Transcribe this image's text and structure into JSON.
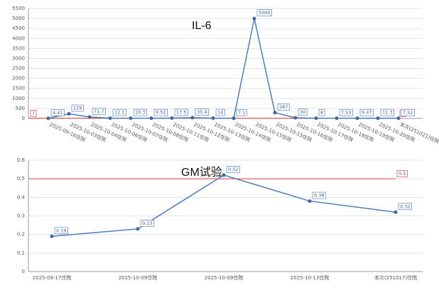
{
  "chart_data": [
    {
      "type": "line",
      "title": "IL-6",
      "categories": [
        "2025-09-16住院",
        "2025-10-03住院",
        "2025-10-04住院",
        "2025-10-06住院",
        "2025-10-07住院",
        "2025-10-08住院",
        "2025-10-11住院",
        "2025-10-12住院",
        "2025-10-13住院",
        "2025-10-14住院",
        "2025-10-15住院",
        "2025-10-15住院",
        "2025-10-16住院",
        "2025-10-17住院",
        "2025-10-18住院",
        "2025-10-19住院",
        "2025-10-20住院",
        "本次(251021)住院"
      ],
      "values": [
        4.41,
        229,
        71.7,
        12.1,
        10.3,
        9.52,
        17.5,
        35.4,
        14,
        7.1,
        5000,
        287,
        30,
        8,
        7.53,
        9.47,
        11.3,
        7.52
      ],
      "color": "#4a7ebb",
      "reference_line": 7,
      "reference_color": "#e04040",
      "ylim": [
        0,
        5500
      ],
      "yticks": [
        0,
        500,
        1000,
        1500,
        2000,
        2500,
        3000,
        3500,
        4000,
        4500,
        5000,
        5500
      ],
      "grid": true,
      "rotate_labels": true
    },
    {
      "type": "line",
      "title": "GM试验",
      "categories": [
        "2025-09-17住院",
        "2025-10-09住院",
        "2025-10-09住院",
        "2025-10-13住院",
        "本次(251017)住院"
      ],
      "values": [
        0.19,
        0.23,
        0.52,
        0.38,
        0.32
      ],
      "color": "#4a7ebb",
      "reference_line": 0.5,
      "reference_color": "#e04040",
      "ylim": [
        0,
        0.6
      ],
      "yticks": [
        0,
        0.1,
        0.2,
        0.3,
        0.4,
        0.5,
        0.6
      ],
      "grid": true,
      "rotate_labels": false
    }
  ]
}
